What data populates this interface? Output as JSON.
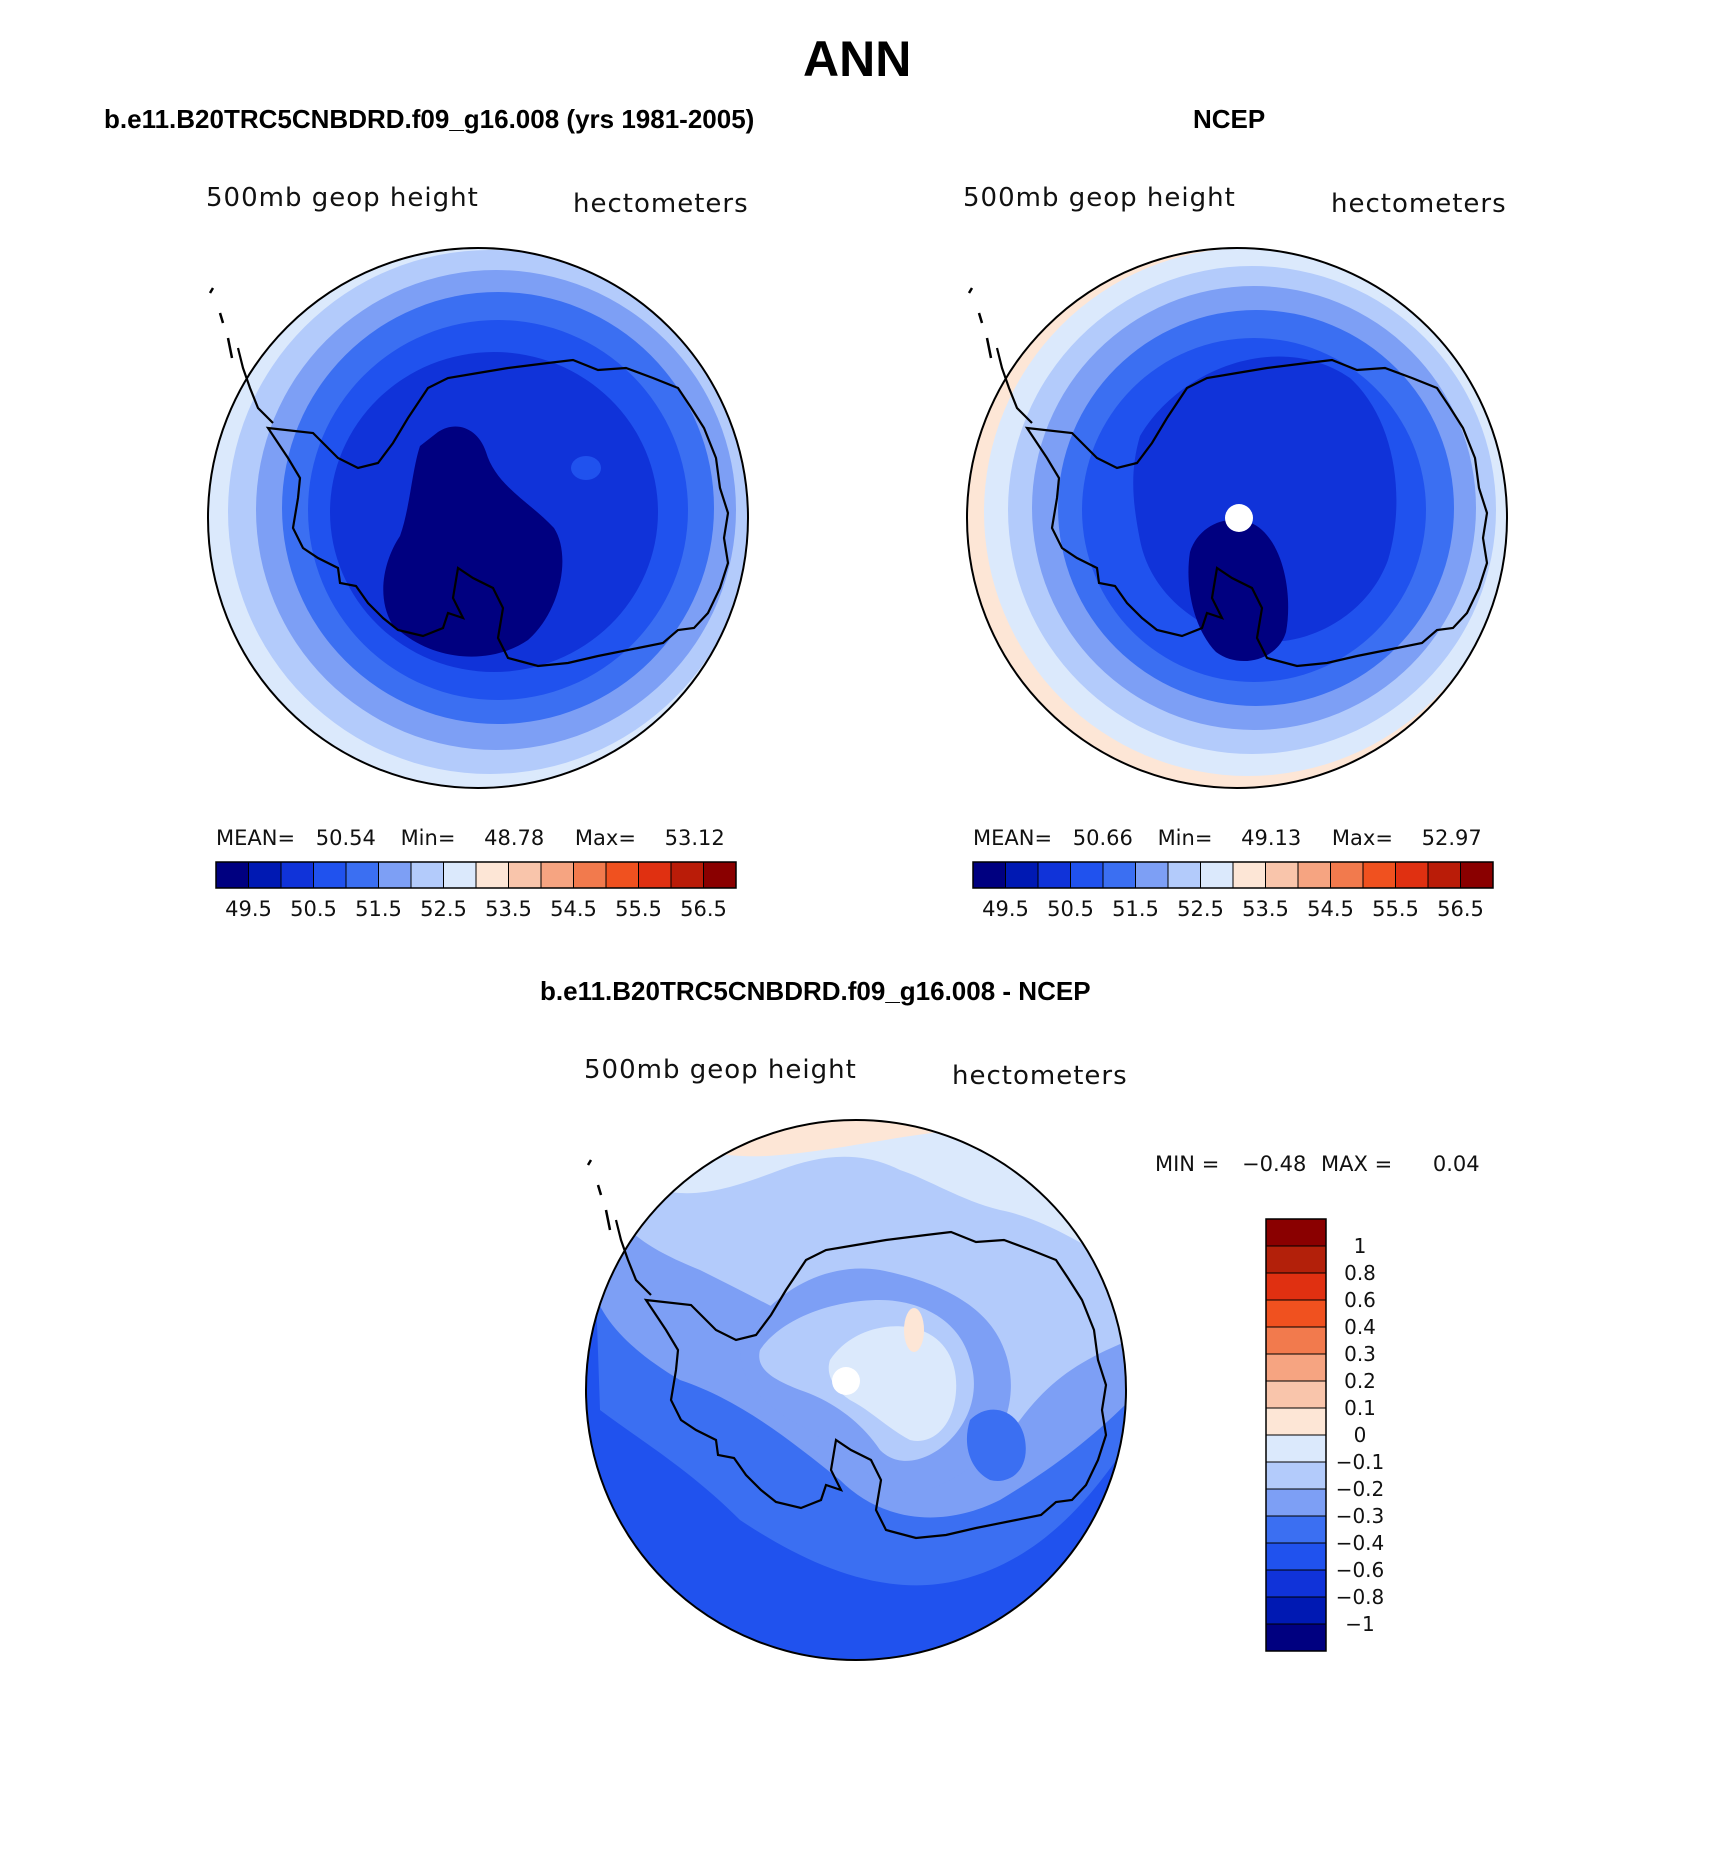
{
  "page": {
    "title": "ANN",
    "bottom_title": "b.e11.B20TRC5CNBDRD.f09_g16.008 - NCEP"
  },
  "colors": {
    "abs_scale": [
      "#000080",
      "#0019b3",
      "#1033d9",
      "#2052ee",
      "#3b6ff2",
      "#7d9ff5",
      "#b3cbfb",
      "#dbe9fc",
      "#fde6d6",
      "#f9c5ab",
      "#f6a481",
      "#f27a4d",
      "#f0511f",
      "#e03011",
      "#ba1c08",
      "#8a0000"
    ],
    "diff_scale": [
      "#8a0000",
      "#b3200a",
      "#e03011",
      "#f0511f",
      "#f27a4d",
      "#f6a481",
      "#f9c5ab",
      "#fde6d6",
      "#dbe9fc",
      "#b3cbfb",
      "#7d9ff5",
      "#3b6ff2",
      "#2052ee",
      "#1033d9",
      "#0019b3",
      "#000080"
    ]
  },
  "panels": [
    {
      "case": "b.e11.B20TRC5CNBDRD.f09_g16.008 (yrs 1981-2005)",
      "variable": "500mb geop height",
      "units": "hectometers",
      "mean_label": "MEAN=",
      "mean": "50.54",
      "min_label": "Min=",
      "min": "48.78",
      "max_label": "Max=",
      "max": "53.12",
      "colorbar_labels": [
        "49.5",
        "50.5",
        "51.5",
        "52.5",
        "53.5",
        "54.5",
        "55.5",
        "56.5"
      ]
    },
    {
      "case": "NCEP",
      "variable": "500mb geop height",
      "units": "hectometers",
      "mean_label": "MEAN=",
      "mean": "50.66",
      "min_label": "Min=",
      "min": "49.13",
      "max_label": "Max=",
      "max": "52.97",
      "colorbar_labels": [
        "49.5",
        "50.5",
        "51.5",
        "52.5",
        "53.5",
        "54.5",
        "55.5",
        "56.5"
      ]
    }
  ],
  "diff": {
    "variable": "500mb geop height",
    "units": "hectometers",
    "min_label": "MIN =",
    "min": "−0.48",
    "max_label": "MAX =",
    "max": "0.04",
    "colorbar_labels": [
      "1",
      "0.8",
      "0.6",
      "0.4",
      "0.3",
      "0.2",
      "0.1",
      "0",
      "−0.1",
      "−0.2",
      "−0.3",
      "−0.4",
      "−0.6",
      "−0.8",
      "−1"
    ]
  }
}
